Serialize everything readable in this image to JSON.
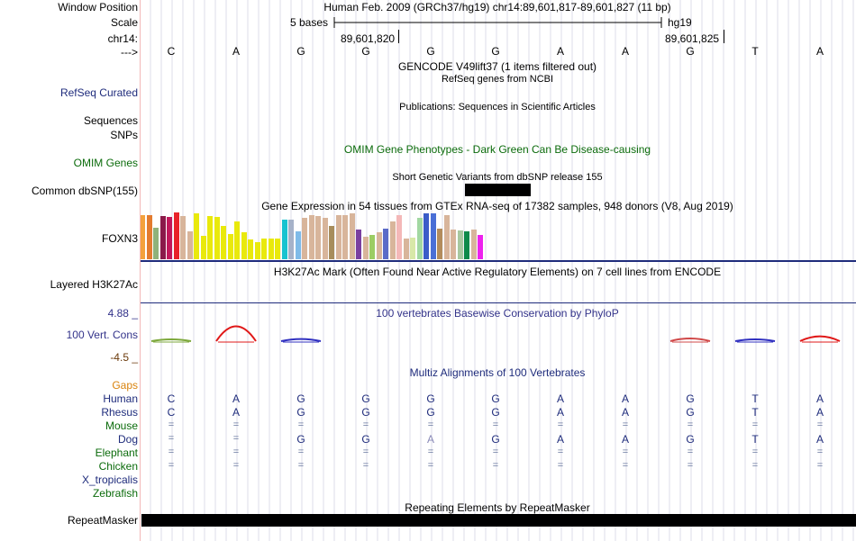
{
  "ruler": {
    "window_position_label": "Window Position",
    "window_position_value": "Human Feb. 2009 (GRCh37/hg19)   chr14:89,601,817-89,601,827 (11 bp)",
    "scale_label": "Scale",
    "scale_value": "5 bases",
    "assembly": "hg19",
    "chrom_label": "chr14:",
    "pos_left": "89,601,820",
    "pos_right": "89,601,825",
    "strand_label": "--->"
  },
  "sequence": [
    "C",
    "A",
    "G",
    "G",
    "G",
    "G",
    "A",
    "A",
    "G",
    "T",
    "A"
  ],
  "tracks": {
    "gencode_title": "GENCODE V49lift37 (1 items filtered out)",
    "refseq_title": "RefSeq genes from NCBI",
    "refseq_label": "RefSeq Curated",
    "publications_title": "Publications: Sequences in Scientific Articles",
    "sequences_label": "Sequences",
    "snps_label": "SNPs",
    "omim_title": "OMIM Gene Phenotypes - Dark Green Can Be Disease-causing",
    "omim_label": "OMIM Genes",
    "dbsnp_title": "Short Genetic Variants from dbSNP release 155",
    "dbsnp_label": "Common dbSNP(155)",
    "gtex_title": "Gene Expression in 54 tissues from GTEx RNA-seq of 17382 samples, 948 donors (V8, Aug 2019)",
    "gtex_gene_label": "FOXN3",
    "h3k27ac_title": "H3K27Ac Mark (Often Found Near Active Regulatory Elements) on 7 cell lines from ENCODE",
    "h3k27ac_label": "Layered H3K27Ac",
    "phylop_title": "100 vertebrates Basewise Conservation by PhyloP",
    "phylop_label": "100 Vert. Cons",
    "phylop_max": "4.88 _",
    "phylop_min": "-4.5 _",
    "multiz_title": "Multiz Alignments of 100 Vertebrates",
    "gaps_label": "Gaps",
    "repeat_title": "Repeating Elements by RepeatMasker",
    "repeat_label": "RepeatMasker"
  },
  "alignment": [
    {
      "species": "Human",
      "color": "#1f2c7c",
      "bases": [
        "C",
        "A",
        "G",
        "G",
        "G",
        "G",
        "A",
        "A",
        "G",
        "T",
        "A"
      ]
    },
    {
      "species": "Rhesus",
      "color": "#1f2c7c",
      "bases": [
        "C",
        "A",
        "G",
        "G",
        "G",
        "G",
        "A",
        "A",
        "G",
        "T",
        "A"
      ]
    },
    {
      "species": "Mouse",
      "color": "#0b6b0b",
      "bases": [
        "=",
        "=",
        "=",
        "=",
        "=",
        "=",
        "=",
        "=",
        "=",
        "=",
        "="
      ]
    },
    {
      "species": "Dog",
      "color": "#1f2c7c",
      "bases": [
        "=",
        "=",
        "G",
        "G",
        "A",
        "G",
        "A",
        "A",
        "G",
        "T",
        "A"
      ]
    },
    {
      "species": "Elephant",
      "color": "#0b6b0b",
      "bases": [
        "=",
        "=",
        "=",
        "=",
        "=",
        "=",
        "=",
        "=",
        "=",
        "=",
        "="
      ]
    },
    {
      "species": "Chicken",
      "color": "#0b6b0b",
      "bases": [
        "=",
        "=",
        "=",
        "=",
        "=",
        "=",
        "=",
        "=",
        "=",
        "=",
        "="
      ]
    },
    {
      "species": "X_tropicalis",
      "color": "#1f2c7c",
      "bases": []
    },
    {
      "species": "Zebrafish",
      "color": "#0b6b0b",
      "bases": []
    }
  ],
  "gtex_bars": {
    "colors": [
      "#f4a13c",
      "#e37b2f",
      "#8fb27a",
      "#8b1a4a",
      "#c2185b",
      "#e8222a",
      "#d8b59b",
      "#d8b59b",
      "#e9e90c",
      "#e9e90c",
      "#e9e90c",
      "#e9e90c",
      "#e9e90c",
      "#e9e90c",
      "#e9e90c",
      "#e9e90c",
      "#e9e90c",
      "#e9e90c",
      "#e9e90c",
      "#e9e90c",
      "#e9e90c",
      "#17c3d0",
      "#a6b2c9",
      "#7fbbe8",
      "#d8b59b",
      "#d8b59b",
      "#d8b59b",
      "#d8b59b",
      "#a78d5c",
      "#d8b59b",
      "#d8b59b",
      "#d8b59b",
      "#7a3fa0",
      "#d8b59b",
      "#9ccd63",
      "#d8b59b",
      "#5b6bc8",
      "#d8b59b",
      "#f4b8b8",
      "#d8b59b",
      "#d8e8a8",
      "#a2d8a2",
      "#3a5cc8",
      "#4a6fd6",
      "#b38c5c",
      "#d8b59b",
      "#d8b59b",
      "#a8c8a0",
      "#0e8a4a",
      "#d8b59b",
      "#ee22ee"
    ],
    "values": [
      0.94,
      0.94,
      0.68,
      0.92,
      0.9,
      1.0,
      0.92,
      0.6,
      0.98,
      0.5,
      0.92,
      0.9,
      0.72,
      0.54,
      0.8,
      0.58,
      0.42,
      0.36,
      0.44,
      0.44,
      0.44,
      0.84,
      0.84,
      0.6,
      0.88,
      0.94,
      0.92,
      0.88,
      0.72,
      0.94,
      0.94,
      0.98,
      0.64,
      0.48,
      0.52,
      0.58,
      0.66,
      0.8,
      0.94,
      0.44,
      0.46,
      0.88,
      0.98,
      0.98,
      0.66,
      0.94,
      0.64,
      0.62,
      0.6,
      0.64,
      0.52
    ]
  },
  "phylop_peaks": [
    {
      "base_index": 0,
      "color": "#7da83c",
      "value": 0.05
    },
    {
      "base_index": 1,
      "color": "#e01818",
      "value": 0.55
    },
    {
      "base_index": 2,
      "color": "#3030c0",
      "value": 0.08
    },
    {
      "base_index": 8,
      "color": "#d04848",
      "value": 0.1
    },
    {
      "base_index": 9,
      "color": "#3030c0",
      "value": 0.06
    },
    {
      "base_index": 10,
      "color": "#e01818",
      "value": 0.18
    }
  ]
}
